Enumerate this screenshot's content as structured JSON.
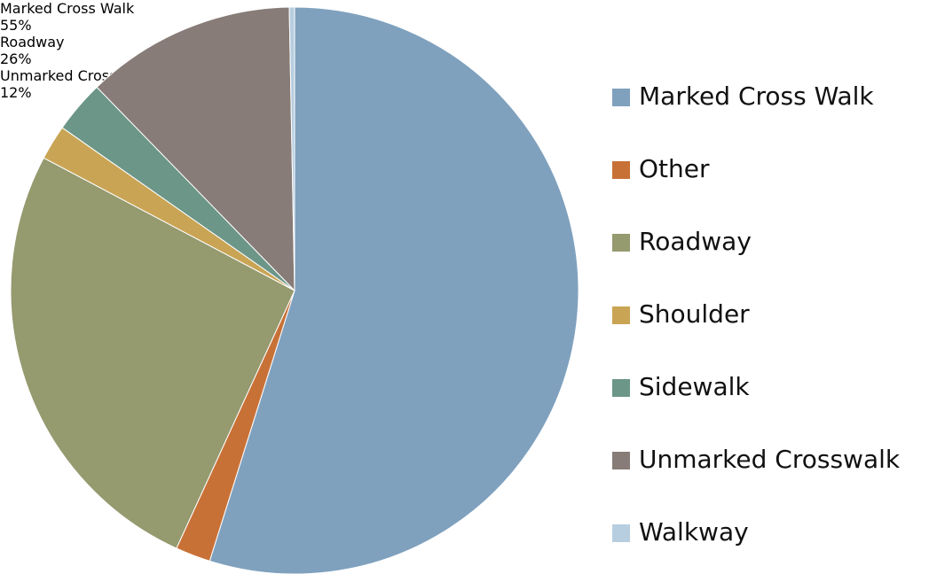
{
  "chart_data": {
    "type": "pie",
    "categories": [
      "Marked Cross Walk",
      "Other",
      "Roadway",
      "Shoulder",
      "Sidewalk",
      "Unmarked Crosswalk",
      "Walkway"
    ],
    "values": [
      55,
      2,
      26,
      2,
      3,
      12,
      0.3
    ],
    "value_labels": [
      "55%",
      null,
      "26%",
      null,
      null,
      "12%",
      null
    ],
    "colors": [
      "#7fa1be",
      "#c87137",
      "#959a6f",
      "#c9a454",
      "#6b9688",
      "#877c77",
      "#b7cde0"
    ],
    "legend": "right"
  }
}
